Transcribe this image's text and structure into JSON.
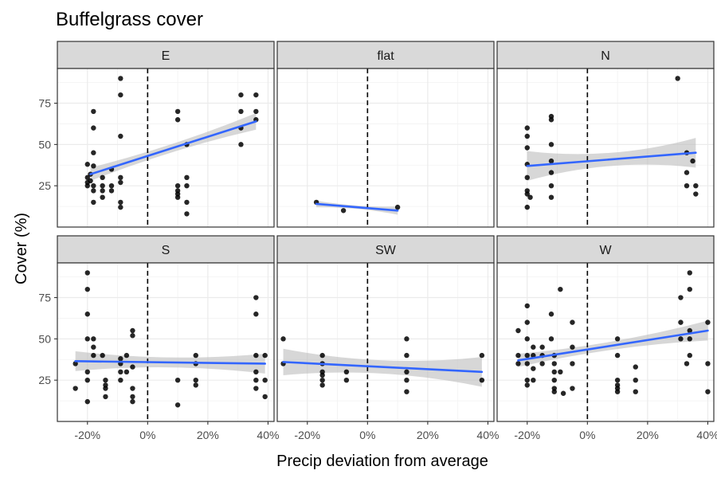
{
  "chart_data": {
    "type": "scatter",
    "title": "Buffelgrass cover",
    "xlabel": "Precip deviation from average",
    "ylabel": "Cover (%)",
    "xlim": [
      -30,
      42
    ],
    "ylim": [
      0,
      96
    ],
    "x_ticks": [
      -20,
      0,
      20,
      40
    ],
    "x_tick_labels": [
      "-20%",
      "0%",
      "20%",
      "40%"
    ],
    "y_ticks": [
      25,
      50,
      75
    ],
    "y_tick_labels": [
      "25",
      "50",
      "75"
    ],
    "reference_line_x": 0,
    "grid": true,
    "point_color": "#000000",
    "fit_color": "#3366ff",
    "band_color": "#bdbdbd",
    "strip_color": "#d9d9d9",
    "panels": [
      {
        "label": "E",
        "points": [
          [
            -20,
            38
          ],
          [
            -20,
            30
          ],
          [
            -20,
            27
          ],
          [
            -20,
            25
          ],
          [
            -19,
            32
          ],
          [
            -19,
            28
          ],
          [
            -18,
            70
          ],
          [
            -18,
            60
          ],
          [
            -18,
            45
          ],
          [
            -18,
            37
          ],
          [
            -18,
            25
          ],
          [
            -18,
            22
          ],
          [
            -18,
            15
          ],
          [
            -15,
            30
          ],
          [
            -15,
            25
          ],
          [
            -15,
            22
          ],
          [
            -15,
            18
          ],
          [
            -12,
            35
          ],
          [
            -12,
            25
          ],
          [
            -12,
            22
          ],
          [
            -9,
            90
          ],
          [
            -9,
            80
          ],
          [
            -9,
            55
          ],
          [
            -9,
            30
          ],
          [
            -9,
            27
          ],
          [
            -9,
            15
          ],
          [
            -9,
            12
          ],
          [
            10,
            70
          ],
          [
            10,
            65
          ],
          [
            10,
            25
          ],
          [
            10,
            22
          ],
          [
            10,
            20
          ],
          [
            10,
            18
          ],
          [
            13,
            50
          ],
          [
            13,
            30
          ],
          [
            13,
            25
          ],
          [
            13,
            15
          ],
          [
            13,
            8
          ],
          [
            31,
            80
          ],
          [
            31,
            70
          ],
          [
            31,
            60
          ],
          [
            31,
            50
          ],
          [
            36,
            80
          ],
          [
            36,
            70
          ],
          [
            36,
            65
          ]
        ],
        "fit": {
          "x_start": -19,
          "y_start": 32,
          "x_end": 36,
          "y_end": 64
        },
        "band": {
          "half_width_start": 4,
          "half_width_mid": 2.5,
          "half_width_end": 5
        }
      },
      {
        "label": "flat",
        "points": [
          [
            -17,
            15
          ],
          [
            -8,
            10
          ],
          [
            10,
            12
          ]
        ],
        "fit": {
          "x_start": -17,
          "y_start": 14,
          "x_end": 10,
          "y_end": 10
        },
        "band": {
          "half_width_start": 2,
          "half_width_mid": 1,
          "half_width_end": 2.5
        }
      },
      {
        "label": "N",
        "points": [
          [
            -20,
            60
          ],
          [
            -20,
            55
          ],
          [
            -20,
            48
          ],
          [
            -20,
            38
          ],
          [
            -20,
            30
          ],
          [
            -20,
            22
          ],
          [
            -20,
            20
          ],
          [
            -20,
            12
          ],
          [
            -19,
            18
          ],
          [
            -12,
            67
          ],
          [
            -12,
            65
          ],
          [
            -12,
            50
          ],
          [
            -12,
            40
          ],
          [
            -12,
            33
          ],
          [
            -12,
            25
          ],
          [
            -12,
            18
          ],
          [
            30,
            90
          ],
          [
            33,
            45
          ],
          [
            33,
            33
          ],
          [
            33,
            25
          ],
          [
            35,
            40
          ],
          [
            36,
            25
          ],
          [
            36,
            20
          ]
        ],
        "fit": {
          "x_start": -20,
          "y_start": 37,
          "x_end": 36,
          "y_end": 45
        },
        "band": {
          "half_width_start": 9,
          "half_width_mid": 4,
          "half_width_end": 9
        }
      },
      {
        "label": "S",
        "points": [
          [
            -24,
            35
          ],
          [
            -24,
            20
          ],
          [
            -20,
            90
          ],
          [
            -20,
            80
          ],
          [
            -20,
            65
          ],
          [
            -20,
            50
          ],
          [
            -20,
            30
          ],
          [
            -20,
            25
          ],
          [
            -20,
            12
          ],
          [
            -18,
            50
          ],
          [
            -18,
            45
          ],
          [
            -18,
            40
          ],
          [
            -15,
            40
          ],
          [
            -14,
            25
          ],
          [
            -14,
            22
          ],
          [
            -14,
            20
          ],
          [
            -14,
            15
          ],
          [
            -9,
            38
          ],
          [
            -9,
            35
          ],
          [
            -9,
            30
          ],
          [
            -9,
            25
          ],
          [
            -7,
            40
          ],
          [
            -7,
            30
          ],
          [
            -5,
            55
          ],
          [
            -5,
            52
          ],
          [
            -5,
            33
          ],
          [
            -5,
            20
          ],
          [
            -5,
            15
          ],
          [
            -5,
            12
          ],
          [
            10,
            25
          ],
          [
            10,
            10
          ],
          [
            16,
            40
          ],
          [
            16,
            35
          ],
          [
            16,
            25
          ],
          [
            16,
            22
          ],
          [
            36,
            75
          ],
          [
            36,
            65
          ],
          [
            36,
            40
          ],
          [
            36,
            30
          ],
          [
            36,
            25
          ],
          [
            36,
            20
          ],
          [
            39,
            40
          ],
          [
            39,
            25
          ],
          [
            39,
            15
          ]
        ],
        "fit": {
          "x_start": -24,
          "y_start": 36.5,
          "x_end": 39,
          "y_end": 35
        },
        "band": {
          "half_width_start": 6,
          "half_width_mid": 3,
          "half_width_end": 6
        }
      },
      {
        "label": "SW",
        "points": [
          [
            -28,
            50
          ],
          [
            -28,
            35
          ],
          [
            -15,
            40
          ],
          [
            -15,
            35
          ],
          [
            -15,
            30
          ],
          [
            -15,
            28
          ],
          [
            -15,
            25
          ],
          [
            -15,
            22
          ],
          [
            -7,
            30
          ],
          [
            -7,
            25
          ],
          [
            13,
            50
          ],
          [
            13,
            40
          ],
          [
            13,
            30
          ],
          [
            13,
            25
          ],
          [
            13,
            18
          ],
          [
            38,
            40
          ],
          [
            38,
            25
          ]
        ],
        "fit": {
          "x_start": -28,
          "y_start": 36,
          "x_end": 38,
          "y_end": 30
        },
        "band": {
          "half_width_start": 8,
          "half_width_mid": 4,
          "half_width_end": 9
        }
      },
      {
        "label": "W",
        "points": [
          [
            -23,
            55
          ],
          [
            -23,
            40
          ],
          [
            -23,
            35
          ],
          [
            -20,
            70
          ],
          [
            -20,
            60
          ],
          [
            -20,
            50
          ],
          [
            -20,
            40
          ],
          [
            -20,
            35
          ],
          [
            -20,
            25
          ],
          [
            -20,
            22
          ],
          [
            -18,
            45
          ],
          [
            -18,
            40
          ],
          [
            -18,
            32
          ],
          [
            -18,
            25
          ],
          [
            -15,
            45
          ],
          [
            -15,
            40
          ],
          [
            -15,
            35
          ],
          [
            -12,
            65
          ],
          [
            -12,
            50
          ],
          [
            -11,
            40
          ],
          [
            -11,
            35
          ],
          [
            -11,
            30
          ],
          [
            -11,
            25
          ],
          [
            -11,
            20
          ],
          [
            -11,
            18
          ],
          [
            -9,
            80
          ],
          [
            -9,
            30
          ],
          [
            -8,
            17
          ],
          [
            -5,
            60
          ],
          [
            -5,
            45
          ],
          [
            -5,
            35
          ],
          [
            -5,
            20
          ],
          [
            10,
            50
          ],
          [
            10,
            40
          ],
          [
            10,
            25
          ],
          [
            10,
            22
          ],
          [
            10,
            20
          ],
          [
            10,
            18
          ],
          [
            16,
            33
          ],
          [
            16,
            25
          ],
          [
            16,
            18
          ],
          [
            31,
            75
          ],
          [
            31,
            60
          ],
          [
            31,
            50
          ],
          [
            34,
            90
          ],
          [
            34,
            80
          ],
          [
            34,
            55
          ],
          [
            34,
            50
          ],
          [
            34,
            40
          ],
          [
            33,
            35
          ],
          [
            40,
            60
          ],
          [
            40,
            35
          ],
          [
            40,
            18
          ]
        ],
        "fit": {
          "x_start": -23,
          "y_start": 37,
          "x_end": 40,
          "y_end": 55
        },
        "band": {
          "half_width_start": 4,
          "half_width_mid": 2.5,
          "half_width_end": 6
        }
      }
    ]
  }
}
